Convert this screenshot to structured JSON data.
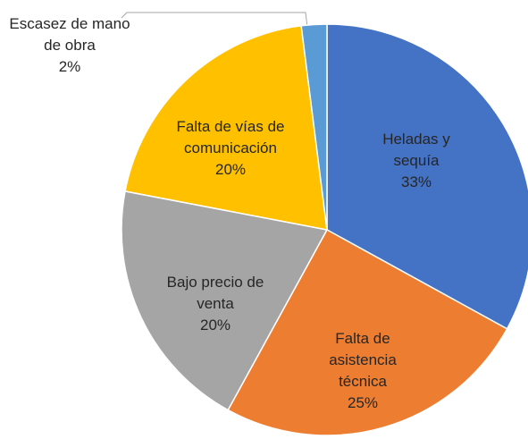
{
  "chart_data": {
    "type": "pie",
    "categories": [
      "Heladas y sequía",
      "Falta de asistencia técnica",
      "Bajo precio de venta",
      "Falta de vías de comunicación",
      "Escasez de mano de obra"
    ],
    "values": [
      33,
      25,
      20,
      20,
      2
    ],
    "value_labels": [
      "33%",
      "25%",
      "20%",
      "20%",
      "2%"
    ],
    "colors": [
      "#4472c4",
      "#ed7d31",
      "#a5a5a5",
      "#ffc000",
      "#5b9bd5"
    ]
  }
}
